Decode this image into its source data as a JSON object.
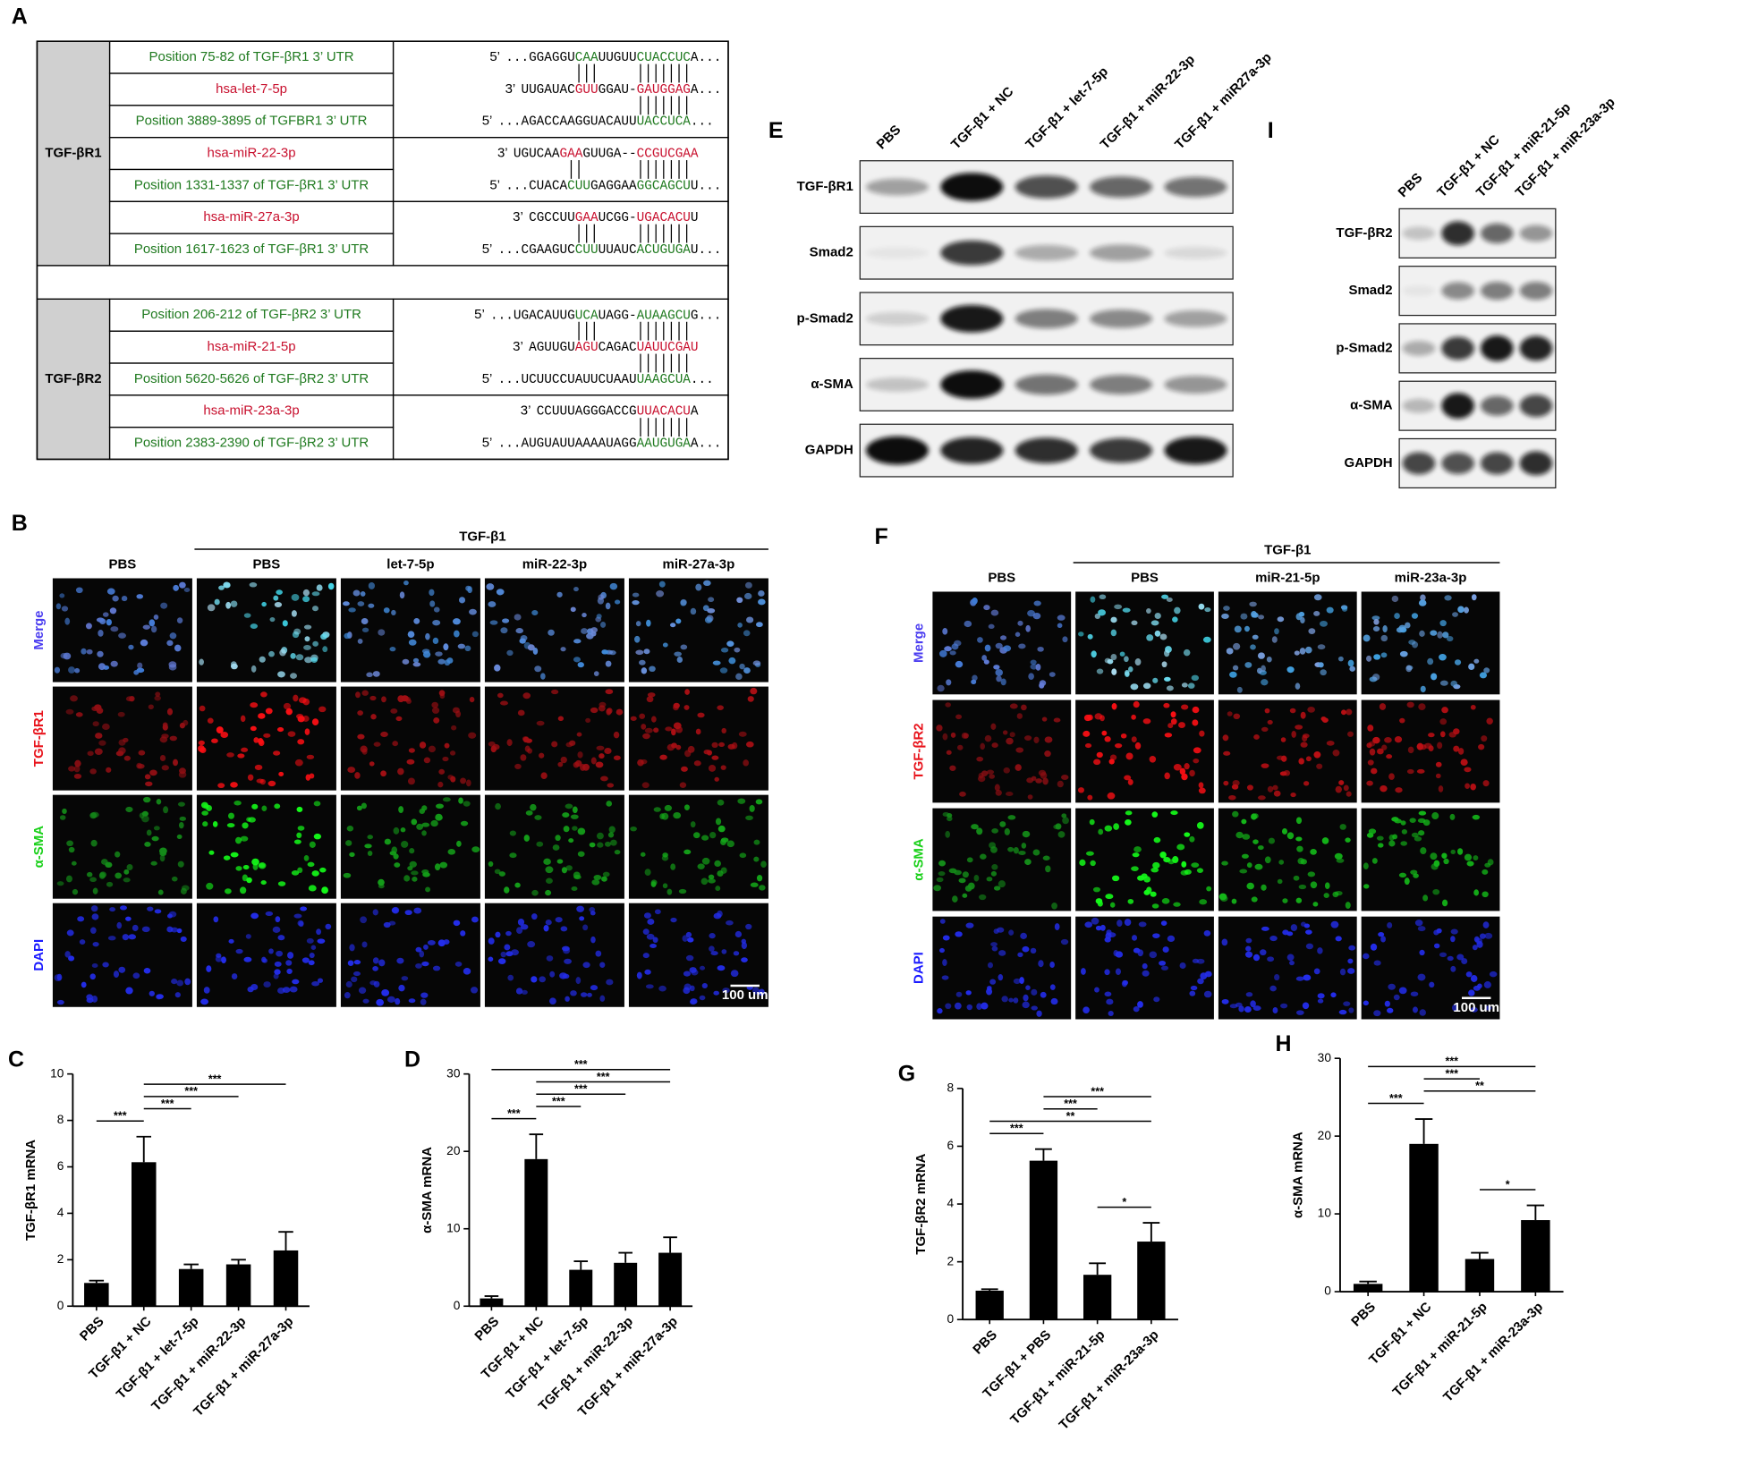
{
  "panel_a": {
    "letter": "A",
    "target_color": "#1f7a1f",
    "mirna_color": "#c8102e",
    "groups": [
      {
        "label": "TGF-βR1",
        "blocks": [
          [
            {
              "name": "Position 75-82 of TGF-βR1 3’ UTR",
              "kind": "target",
              "prime": "5’",
              "seq": [
                {
                  "text": "...GGAGGU"
                },
                {
                  "text": "CAA",
                  "paired": true
                },
                {
                  "text": "UUGUU"
                },
                {
                  "text": "CUACCUC",
                  "paired": true
                },
                {
                  "text": "A..."
                }
              ]
            },
            {
              "name": "hsa-let-7-5p",
              "kind": "mirna",
              "prime": "3’",
              "seq": [
                {
                  "text": "UUGAUAC"
                },
                {
                  "text": "GUU",
                  "paired": true
                },
                {
                  "text": "GGAU-"
                },
                {
                  "text": "GAUGGAG",
                  "paired": true
                },
                {
                  "text": "A..."
                }
              ]
            },
            {
              "name": "Position 3889-3895 of TGFBR1 3’ UTR",
              "kind": "target",
              "prime": "5’",
              "seq": [
                {
                  "text": "...AGACCAAGGUACAUU"
                },
                {
                  "text": "UACCUCA",
                  "paired": true
                },
                {
                  "text": "..."
                }
              ]
            }
          ],
          [
            {
              "name": "hsa-miR-22-3p",
              "kind": "mirna",
              "prime": "3’",
              "seq": [
                {
                  "text": "UGUCAA"
                },
                {
                  "text": "GAA",
                  "paired": true
                },
                {
                  "text": "GUUGA--"
                },
                {
                  "text": "CCGUCGAA",
                  "paired": true
                }
              ]
            },
            {
              "name": "Position 1331-1337 of TGF-βR1 3’ UTR",
              "kind": "target",
              "prime": "5’",
              "seq": [
                {
                  "text": "...CUACA"
                },
                {
                  "text": "CUU",
                  "paired": true
                },
                {
                  "text": "GAGGAA"
                },
                {
                  "text": "GGCAGCU",
                  "paired": true
                },
                {
                  "text": "U..."
                }
              ]
            }
          ],
          [
            {
              "name": "hsa-miR-27a-3p",
              "kind": "mirna",
              "prime": "3’",
              "seq": [
                {
                  "text": "CGCCUU"
                },
                {
                  "text": "GAA",
                  "paired": true
                },
                {
                  "text": "UCGG-"
                },
                {
                  "text": "UGACACU",
                  "paired": true
                },
                {
                  "text": "U"
                }
              ]
            },
            {
              "name": "Position 1617-1623 of TGF-βR1 3’ UTR",
              "kind": "target",
              "prime": "5’",
              "seq": [
                {
                  "text": "...CGAAGUC"
                },
                {
                  "text": "CUU",
                  "paired": true
                },
                {
                  "text": "UUAUC"
                },
                {
                  "text": "ACUGUGA",
                  "paired": true
                },
                {
                  "text": "U..."
                }
              ]
            }
          ]
        ]
      },
      {
        "label": "TGF-βR2",
        "blocks": [
          [
            {
              "name": "Position 206-212 of TGF-βR2 3’ UTR",
              "kind": "target",
              "prime": "5’",
              "seq": [
                {
                  "text": "...UGACAUUG"
                },
                {
                  "text": "UCA",
                  "paired": true
                },
                {
                  "text": "UAGG-"
                },
                {
                  "text": "AUAAGCU",
                  "paired": true
                },
                {
                  "text": "G..."
                }
              ]
            },
            {
              "name": "hsa-miR-21-5p",
              "kind": "mirna",
              "prime": "3’",
              "seq": [
                {
                  "text": "AGUUGU"
                },
                {
                  "text": "AGU",
                  "paired": true
                },
                {
                  "text": "CAGAC"
                },
                {
                  "text": "UAUUCGAU",
                  "paired": true
                }
              ]
            },
            {
              "name": "Position 5620-5626 of TGF-βR2 3’ UTR",
              "kind": "target",
              "prime": "5’",
              "seq": [
                {
                  "text": "...UCUUCCUAUUCUAAU"
                },
                {
                  "text": "UAAGCUA",
                  "paired": true
                },
                {
                  "text": "..."
                }
              ]
            }
          ],
          [
            {
              "name": "hsa-miR-23a-3p",
              "kind": "mirna",
              "prime": "3’",
              "seq": [
                {
                  "text": "CCUUUAGGGACCG"
                },
                {
                  "text": "UUACACU",
                  "paired": true
                },
                {
                  "text": "A"
                }
              ]
            },
            {
              "name": "Position 2383-2390 of TGF-βR2 3’ UTR",
              "kind": "target",
              "prime": "5’",
              "seq": [
                {
                  "text": "...AUGUAUUAAAAUAGG"
                },
                {
                  "text": "AAUGUGA",
                  "paired": true
                },
                {
                  "text": "A..."
                }
              ]
            }
          ]
        ]
      }
    ]
  },
  "panel_b": {
    "letter": "B",
    "header": "TGF-β1",
    "columns": [
      "PBS",
      "PBS",
      "let-7-5p",
      "miR-22-3p",
      "miR-27a-3p"
    ],
    "rows": [
      "Merge",
      "TGF-βR1",
      "α-SMA",
      "DAPI"
    ],
    "row_colors": [
      "#4a3cf0",
      "#e8141c",
      "#19d019",
      "#1a1aff"
    ],
    "scale_bar": "100 um"
  },
  "panel_f": {
    "letter": "F",
    "header": "TGF-β1",
    "columns": [
      "PBS",
      "PBS",
      "miR-21-5p",
      "miR-23a-3p"
    ],
    "rows": [
      "Merge",
      "TGF-βR2",
      "α-SMA",
      "DAPI"
    ],
    "row_colors": [
      "#4a3cf0",
      "#e8141c",
      "#19d019",
      "#1a1aff"
    ],
    "scale_bar": "100 um"
  },
  "panel_e": {
    "letter": "E",
    "lanes": [
      "PBS",
      "TGF-β1 + NC",
      "TGF-β1 + let-7-5p",
      "TGF-β1 + miR-22-3p",
      "TGF-β1 + miR27a-3p"
    ],
    "rows": [
      "TGF-βR1",
      "Smad2",
      "p-Smad2",
      "α-SMA",
      "GAPDH"
    ]
  },
  "panel_i": {
    "letter": "I",
    "lanes": [
      "PBS",
      "TGF-β1 + NC",
      "TGF-β1 + miR-21-5p",
      "TGF-β1 + miR-23a-3p"
    ],
    "rows": [
      "TGF-βR2",
      "Smad2",
      "p-Smad2",
      "α-SMA",
      "GAPDH"
    ]
  },
  "chart_data": [
    {
      "type": "bar",
      "letter": "C",
      "y_label": "TGF-βR1 mRNA",
      "color": "#000000",
      "categories": [
        "PBS",
        "TGF-β1 + NC",
        "TGF-β1 + let-7-5p",
        "TGF-β1 + miR-22-3p",
        "TGF-β1 + miR-27a-3p"
      ],
      "values": [
        1.0,
        6.2,
        1.6,
        1.8,
        2.4
      ],
      "errors": [
        0.1,
        1.1,
        0.2,
        0.2,
        0.8
      ],
      "ylim": [
        0,
        10
      ],
      "yticks": [
        0,
        2,
        4,
        6,
        8,
        10
      ],
      "annotations": [
        {
          "label": "***",
          "between": [
            "TGF-β1 + NC",
            "TGF-β1 + miR-27a-3p"
          ]
        },
        {
          "label": "***",
          "between": [
            "TGF-β1 + NC",
            "TGF-β1 + miR-22-3p"
          ]
        },
        {
          "label": "***",
          "between": [
            "TGF-β1 + NC",
            "TGF-β1 + let-7-5p"
          ]
        },
        {
          "label": "***",
          "between": [
            "PBS",
            "TGF-β1 + NC"
          ]
        }
      ]
    },
    {
      "type": "bar",
      "letter": "D",
      "y_label": "α-SMA mRNA",
      "color": "#000000",
      "categories": [
        "PBS",
        "TGF-β1 + NC",
        "TGF-β1 + let-7-5p",
        "TGF-β1 + miR-22-3p",
        "TGF-β1 + miR-27a-3p"
      ],
      "values": [
        1.0,
        19,
        4.7,
        5.6,
        6.9
      ],
      "errors": [
        0.3,
        3.2,
        1.1,
        1.3,
        2.0
      ],
      "ylim": [
        0,
        30
      ],
      "yticks": [
        0,
        10,
        20,
        30
      ],
      "annotations": [
        {
          "label": "***",
          "between": [
            "PBS",
            "TGF-β1 + miR-27a-3p"
          ]
        },
        {
          "label": "***",
          "between": [
            "TGF-β1 + NC",
            "TGF-β1 + miR-27a-3p"
          ]
        },
        {
          "label": "***",
          "between": [
            "TGF-β1 + NC",
            "TGF-β1 + miR-22-3p"
          ]
        },
        {
          "label": "***",
          "between": [
            "TGF-β1 + NC",
            "TGF-β1 + let-7-5p"
          ]
        },
        {
          "label": "***",
          "between": [
            "PBS",
            "TGF-β1 + NC"
          ]
        }
      ]
    },
    {
      "type": "bar",
      "letter": "G",
      "y_label": "TGF-βR2 mRNA",
      "color": "#000000",
      "categories": [
        "PBS",
        "TGF-β1 + PBS",
        "TGF-β1 + miR-21-5p",
        "TGF-β1 + miR-23a-3p"
      ],
      "values": [
        1.0,
        5.5,
        1.55,
        2.7
      ],
      "errors": [
        0.05,
        0.4,
        0.4,
        0.65
      ],
      "ylim": [
        0,
        8
      ],
      "yticks": [
        0,
        2,
        4,
        6,
        8
      ],
      "annotations": [
        {
          "label": "***",
          "between": [
            "TGF-β1 + PBS",
            "TGF-β1 + miR-23a-3p"
          ]
        },
        {
          "label": "***",
          "between": [
            "TGF-β1 + PBS",
            "TGF-β1 + miR-21-5p"
          ]
        },
        {
          "label": "**",
          "between": [
            "PBS",
            "TGF-β1 + miR-23a-3p"
          ]
        },
        {
          "label": "***",
          "between": [
            "PBS",
            "TGF-β1 + PBS"
          ]
        },
        {
          "label": "*",
          "between": [
            "TGF-β1 + miR-21-5p",
            "TGF-β1 + miR-23a-3p"
          ]
        }
      ]
    },
    {
      "type": "bar",
      "letter": "H",
      "y_label": "α-SMA mRNA",
      "color": "#000000",
      "categories": [
        "PBS",
        "TGF-β1 + NC",
        "TGF-β1 + miR-21-5p",
        "TGF-β1 + miR-23a-3p"
      ],
      "values": [
        1.0,
        19,
        4.2,
        9.2
      ],
      "errors": [
        0.3,
        3.2,
        0.8,
        1.9
      ],
      "ylim": [
        0,
        30
      ],
      "yticks": [
        0,
        10,
        20,
        30
      ],
      "annotations": [
        {
          "label": "***",
          "between": [
            "PBS",
            "TGF-β1 + miR-23a-3p"
          ]
        },
        {
          "label": "***",
          "between": [
            "TGF-β1 + NC",
            "TGF-β1 + miR-21-5p"
          ]
        },
        {
          "label": "**",
          "between": [
            "TGF-β1 + NC",
            "TGF-β1 + miR-23a-3p"
          ]
        },
        {
          "label": "***",
          "between": [
            "PBS",
            "TGF-β1 + NC"
          ]
        },
        {
          "label": "*",
          "between": [
            "TGF-β1 + miR-21-5p",
            "TGF-β1 + miR-23a-3p"
          ]
        }
      ]
    }
  ]
}
